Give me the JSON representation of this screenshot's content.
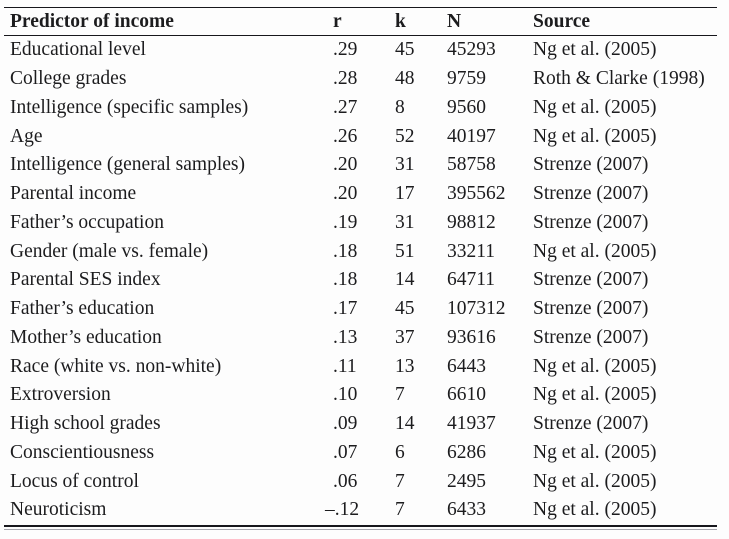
{
  "table": {
    "columns": [
      {
        "key": "predictor",
        "label": "Predictor of income"
      },
      {
        "key": "r",
        "label": "r"
      },
      {
        "key": "k",
        "label": "k"
      },
      {
        "key": "n",
        "label": "N"
      },
      {
        "key": "source",
        "label": "Source"
      }
    ],
    "rows": [
      {
        "predictor": "Educational level",
        "r": ".29",
        "k": 45,
        "n": 45293,
        "source": "Ng et al. (2005)"
      },
      {
        "predictor": "College grades",
        "r": ".28",
        "k": 48,
        "n": 9759,
        "source": "Roth & Clarke (1998)"
      },
      {
        "predictor": "Intelligence (specific samples)",
        "r": ".27",
        "k": 8,
        "n": 9560,
        "source": "Ng et al. (2005)"
      },
      {
        "predictor": "Age",
        "r": ".26",
        "k": 52,
        "n": 40197,
        "source": "Ng et al. (2005)"
      },
      {
        "predictor": "Intelligence (general samples)",
        "r": ".20",
        "k": 31,
        "n": 58758,
        "source": "Strenze (2007)"
      },
      {
        "predictor": "Parental income",
        "r": ".20",
        "k": 17,
        "n": 395562,
        "source": "Strenze (2007)"
      },
      {
        "predictor": "Father’s occupation",
        "r": ".19",
        "k": 31,
        "n": 98812,
        "source": "Strenze (2007)"
      },
      {
        "predictor": "Gender (male vs. female)",
        "r": ".18",
        "k": 51,
        "n": 33211,
        "source": "Ng et al. (2005)"
      },
      {
        "predictor": "Parental SES index",
        "r": ".18",
        "k": 14,
        "n": 64711,
        "source": "Strenze (2007)"
      },
      {
        "predictor": "Father’s education",
        "r": ".17",
        "k": 45,
        "n": 107312,
        "source": "Strenze (2007)"
      },
      {
        "predictor": "Mother’s education",
        "r": ".13",
        "k": 37,
        "n": 93616,
        "source": "Strenze (2007)"
      },
      {
        "predictor": "Race (white vs. non-white)",
        "r": ".11",
        "k": 13,
        "n": 6443,
        "source": "Ng et al. (2005)"
      },
      {
        "predictor": "Extroversion",
        "r": ".10",
        "k": 7,
        "n": 6610,
        "source": "Ng et al. (2005)"
      },
      {
        "predictor": "High school grades",
        "r": ".09",
        "k": 14,
        "n": 41937,
        "source": "Strenze (2007)"
      },
      {
        "predictor": "Conscientiousness",
        "r": ".07",
        "k": 6,
        "n": 6286,
        "source": "Ng et al. (2005)"
      },
      {
        "predictor": "Locus of control",
        "r": ".06",
        "k": 7,
        "n": 2495,
        "source": "Ng et al. (2005)"
      },
      {
        "predictor": "Neuroticism",
        "r": "–.12",
        "k": 7,
        "n": 6433,
        "source": "Ng et al. (2005)"
      }
    ]
  },
  "colors": {
    "text": "#1c1c1e",
    "rule": "#17171c",
    "rule_echo": "#a6a6ae",
    "background": "#fdfdfd"
  }
}
